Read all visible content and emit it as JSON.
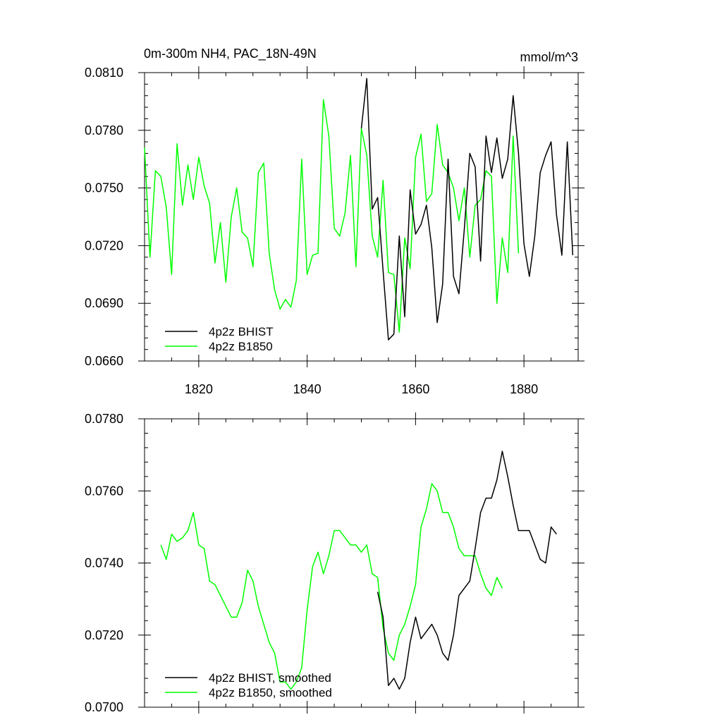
{
  "colors": {
    "bhist": "#000000",
    "b1850": "#00ff00"
  },
  "chart_data": [
    {
      "type": "line",
      "title": "0m-300m NH4, PAC_18N-49N",
      "units": "mmol/m^3",
      "xlabel": "",
      "ylabel": "",
      "xlim": [
        1810,
        1890
      ],
      "ylim": [
        0.066,
        0.081
      ],
      "xticks": [
        1820,
        1840,
        1860,
        1880
      ],
      "xtick_labels": [
        "1820",
        "1840",
        "1860",
        "1880"
      ],
      "yticks": [
        0.066,
        0.069,
        0.072,
        0.075,
        0.078,
        0.081
      ],
      "ytick_labels": [
        "0.0660",
        "0.0690",
        "0.0720",
        "0.0750",
        "0.0780",
        "0.0810"
      ],
      "grid": false,
      "legend_position": "bottom-left",
      "series": [
        {
          "name": "4p2z BHIST",
          "color_key": "bhist",
          "x": [
            1850,
            1851,
            1852,
            1853,
            1854,
            1855,
            1856,
            1857,
            1858,
            1859,
            1860,
            1861,
            1862,
            1863,
            1864,
            1865,
            1866,
            1867,
            1868,
            1869,
            1870,
            1871,
            1872,
            1873,
            1874,
            1875,
            1876,
            1877,
            1878,
            1879,
            1880,
            1881,
            1882,
            1883,
            1884,
            1885,
            1886,
            1887,
            1888,
            1889
          ],
          "values": [
            0.0781,
            0.0807,
            0.0739,
            0.0745,
            0.0707,
            0.0671,
            0.0674,
            0.0725,
            0.0683,
            0.0749,
            0.0726,
            0.0731,
            0.0741,
            0.0719,
            0.068,
            0.07,
            0.0765,
            0.0704,
            0.0695,
            0.0729,
            0.0768,
            0.0761,
            0.0712,
            0.0777,
            0.0758,
            0.0776,
            0.0755,
            0.0765,
            0.0798,
            0.0768,
            0.0721,
            0.0704,
            0.0725,
            0.0758,
            0.0767,
            0.0774,
            0.0736,
            0.0715,
            0.0774,
            0.0715
          ]
        },
        {
          "name": "4p2z B1850",
          "color_key": "b1850",
          "x": [
            1810,
            1811,
            1812,
            1813,
            1814,
            1815,
            1816,
            1817,
            1818,
            1819,
            1820,
            1821,
            1822,
            1823,
            1824,
            1825,
            1826,
            1827,
            1828,
            1829,
            1830,
            1831,
            1832,
            1833,
            1834,
            1835,
            1836,
            1837,
            1838,
            1839,
            1840,
            1841,
            1842,
            1843,
            1844,
            1845,
            1846,
            1847,
            1848,
            1849,
            1850,
            1851,
            1852,
            1853,
            1854,
            1855,
            1856,
            1857,
            1858,
            1859,
            1860,
            1861,
            1862,
            1863,
            1864,
            1865,
            1866,
            1867,
            1868,
            1869,
            1870,
            1871,
            1872,
            1873,
            1874,
            1875,
            1876,
            1877,
            1878,
            1879
          ],
          "values": [
            0.0771,
            0.0714,
            0.0759,
            0.0756,
            0.074,
            0.0705,
            0.0773,
            0.0741,
            0.0762,
            0.0744,
            0.0766,
            0.0751,
            0.0742,
            0.0711,
            0.0732,
            0.0701,
            0.0735,
            0.075,
            0.0727,
            0.0724,
            0.0709,
            0.0758,
            0.0763,
            0.0716,
            0.0697,
            0.0687,
            0.0692,
            0.0688,
            0.0702,
            0.0765,
            0.0705,
            0.0715,
            0.0716,
            0.0796,
            0.0777,
            0.0729,
            0.0725,
            0.0737,
            0.0767,
            0.0709,
            0.0781,
            0.0767,
            0.0725,
            0.0714,
            0.0754,
            0.0706,
            0.0705,
            0.0675,
            0.0724,
            0.0708,
            0.0766,
            0.0778,
            0.0743,
            0.0747,
            0.0783,
            0.0762,
            0.0758,
            0.075,
            0.0733,
            0.075,
            0.0714,
            0.0741,
            0.0744,
            0.0759,
            0.0756,
            0.069,
            0.0724,
            0.0706,
            0.0777,
            0.0716
          ]
        }
      ]
    },
    {
      "type": "line",
      "title": "",
      "xlabel": "",
      "ylabel": "",
      "xlim": [
        1810,
        1890
      ],
      "ylim": [
        0.07,
        0.078
      ],
      "xticks": [
        1820,
        1840,
        1860,
        1880
      ],
      "xtick_labels": [],
      "yticks": [
        0.07,
        0.072,
        0.074,
        0.076,
        0.078
      ],
      "ytick_labels": [
        "0.0700",
        "0.0720",
        "0.0740",
        "0.0760",
        "0.0780"
      ],
      "grid": false,
      "legend_position": "bottom-left",
      "series": [
        {
          "name": "4p2z BHIST, smoothed",
          "color_key": "bhist",
          "x": [
            1853,
            1854,
            1855,
            1856,
            1857,
            1858,
            1859,
            1860,
            1861,
            1862,
            1863,
            1864,
            1865,
            1866,
            1867,
            1868,
            1869,
            1870,
            1871,
            1872,
            1873,
            1874,
            1875,
            1876,
            1877,
            1878,
            1879,
            1880,
            1881,
            1882,
            1883,
            1884,
            1885,
            1886
          ],
          "values": [
            0.0732,
            0.0725,
            0.0706,
            0.0708,
            0.0705,
            0.0708,
            0.0718,
            0.0725,
            0.0719,
            0.0721,
            0.0723,
            0.072,
            0.0715,
            0.0713,
            0.072,
            0.0731,
            0.0733,
            0.0735,
            0.0744,
            0.0754,
            0.0758,
            0.0758,
            0.0763,
            0.0771,
            0.0764,
            0.0756,
            0.0749,
            0.0749,
            0.0749,
            0.0745,
            0.0741,
            0.074,
            0.075,
            0.0748
          ]
        },
        {
          "name": "4p2z B1850, smoothed",
          "color_key": "b1850",
          "x": [
            1813,
            1814,
            1815,
            1816,
            1817,
            1818,
            1819,
            1820,
            1821,
            1822,
            1823,
            1824,
            1825,
            1826,
            1827,
            1828,
            1829,
            1830,
            1831,
            1832,
            1833,
            1834,
            1835,
            1836,
            1837,
            1838,
            1839,
            1840,
            1841,
            1842,
            1843,
            1844,
            1845,
            1846,
            1847,
            1848,
            1849,
            1850,
            1851,
            1852,
            1853,
            1854,
            1855,
            1856,
            1857,
            1858,
            1859,
            1860,
            1861,
            1862,
            1863,
            1864,
            1865,
            1866,
            1867,
            1868,
            1869,
            1870,
            1871,
            1872,
            1873,
            1874,
            1875,
            1876
          ],
          "values": [
            0.0745,
            0.0741,
            0.0748,
            0.0746,
            0.0747,
            0.0749,
            0.0754,
            0.0745,
            0.0744,
            0.0735,
            0.0734,
            0.0731,
            0.0728,
            0.0725,
            0.0725,
            0.0729,
            0.0738,
            0.0735,
            0.0728,
            0.0723,
            0.0718,
            0.0715,
            0.0707,
            0.0707,
            0.0705,
            0.0707,
            0.0711,
            0.0727,
            0.0739,
            0.0743,
            0.0737,
            0.0742,
            0.0749,
            0.0749,
            0.0747,
            0.0745,
            0.0745,
            0.0743,
            0.0745,
            0.0737,
            0.0736,
            0.0722,
            0.0715,
            0.0713,
            0.072,
            0.0723,
            0.0728,
            0.0734,
            0.075,
            0.0755,
            0.0762,
            0.076,
            0.0754,
            0.0754,
            0.075,
            0.0744,
            0.0742,
            0.0742,
            0.0742,
            0.0737,
            0.0733,
            0.0731,
            0.0736,
            0.0733
          ]
        }
      ]
    }
  ]
}
